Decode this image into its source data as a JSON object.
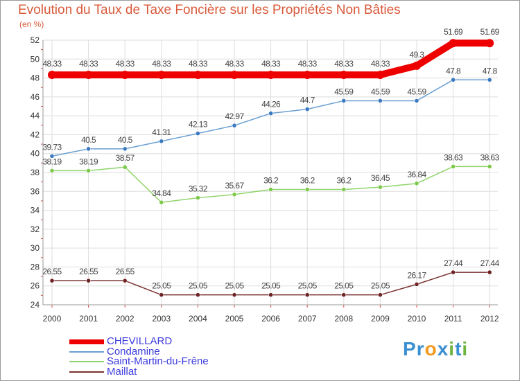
{
  "header": {
    "title": "Evolution du Taux de Taxe Foncière sur les Propriétés Non Bâties",
    "unit": "(en %)"
  },
  "logo": {
    "text": "Proxiti",
    "letters": [
      "P",
      "r",
      "o",
      "x",
      "i",
      "t",
      "i"
    ],
    "colors": [
      "#3a8fd0",
      "#3a8fd0",
      "#f29a1e",
      "#3a8fd0",
      "#6db33f",
      "#3a8fd0",
      "#6db33f"
    ]
  },
  "chart_data": {
    "type": "line",
    "title": "Evolution du Taux de Taxe Foncière sur les Propriétés Non Bâties",
    "ylabel": "(en %)",
    "xlabel": "",
    "ylim": [
      24,
      52
    ],
    "yticks": [
      24,
      26,
      28,
      30,
      32,
      34,
      36,
      38,
      40,
      42,
      44,
      46,
      48,
      50,
      52
    ],
    "categories": [
      "2000",
      "2001",
      "2002",
      "2003",
      "2004",
      "2005",
      "2006",
      "2007",
      "2008",
      "2009",
      "2010",
      "2011",
      "2012"
    ],
    "legend_position": "bottom-left",
    "grid": true,
    "series": [
      {
        "name": "CHEVILLARD",
        "color": "#ee0000",
        "width": 10,
        "marker": "#ee0000",
        "values": [
          48.33,
          48.33,
          48.33,
          48.33,
          48.33,
          48.33,
          48.33,
          48.33,
          48.33,
          48.33,
          49.3,
          51.69,
          51.69
        ],
        "labels": [
          "48.33",
          "48.33",
          "48.33",
          "48.33",
          "48.33",
          "48.33",
          "48.33",
          "48.33",
          "48.33",
          "48.33",
          "49.3",
          "51.69",
          "51.69"
        ]
      },
      {
        "name": "Condamine",
        "color": "#6a9fd2",
        "width": 1.5,
        "marker": "#3a78c0",
        "values": [
          39.73,
          40.5,
          40.5,
          41.31,
          42.13,
          42.97,
          44.26,
          44.7,
          45.59,
          45.59,
          45.59,
          47.8,
          47.8
        ],
        "labels": [
          "39.73",
          "40.5",
          "40.5",
          "41.31",
          "42.13",
          "42.97",
          "44.26",
          "44.7",
          "45.59",
          "45.59",
          "45.59",
          "47.8",
          "47.8"
        ]
      },
      {
        "name": "Saint-Martin-du-Frêne",
        "color": "#8fd46a",
        "width": 1.5,
        "marker": "#7cc94a",
        "values": [
          38.19,
          38.19,
          38.57,
          34.84,
          35.32,
          35.67,
          36.2,
          36.2,
          36.2,
          36.45,
          36.84,
          38.63,
          38.63
        ],
        "labels": [
          "38.19",
          "38.19",
          "38.57",
          "34.84",
          "35.32",
          "35.67",
          "36.2",
          "36.2",
          "36.2",
          "36.45",
          "36.84",
          "38.63",
          "38.63"
        ]
      },
      {
        "name": "Maillat",
        "color": "#7a3030",
        "width": 1.5,
        "marker": "#6e2222",
        "values": [
          26.55,
          26.55,
          26.55,
          25.05,
          25.05,
          25.05,
          25.05,
          25.05,
          25.05,
          25.05,
          26.17,
          27.44,
          27.44
        ],
        "labels": [
          "26.55",
          "26.55",
          "26.55",
          "25.05",
          "25.05",
          "25.05",
          "25.05",
          "25.05",
          "25.05",
          "25.05",
          "26.17",
          "27.44",
          "27.44"
        ]
      }
    ]
  }
}
